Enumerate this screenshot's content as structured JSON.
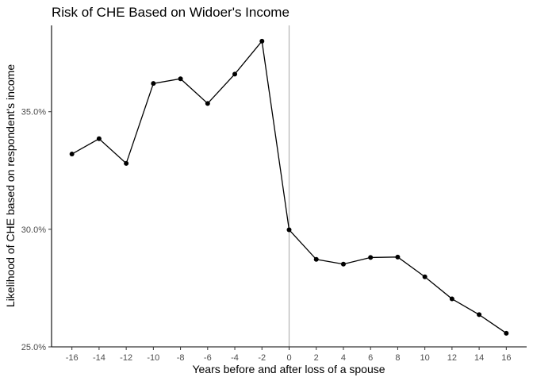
{
  "chart_data": {
    "type": "line",
    "title": "Risk of CHE Based on Widoer's Income",
    "xlabel": "Years before and after loss of a spouse",
    "ylabel": "Likelihood of CHE based on respondent's income",
    "x": [
      -16,
      -14,
      -12,
      -10,
      -8,
      -6,
      -4,
      -2,
      0,
      2,
      4,
      6,
      8,
      10,
      12,
      14,
      16
    ],
    "series": [
      {
        "values": [
          33.2,
          33.85,
          32.8,
          36.2,
          36.4,
          35.35,
          36.6,
          38.0,
          29.98,
          28.72,
          28.52,
          28.8,
          28.82,
          27.98,
          27.04,
          26.37,
          25.58
        ]
      }
    ],
    "xticks": [
      "-16",
      "-14",
      "-12",
      "-10",
      "-8",
      "-6",
      "-4",
      "-2",
      "0",
      "2",
      "4",
      "6",
      "8",
      "10",
      "12",
      "14",
      "16"
    ],
    "yticks": [
      {
        "value": 25,
        "label": "25.0%"
      },
      {
        "value": 30,
        "label": "30.0%"
      },
      {
        "value": 35,
        "label": "35.0%"
      }
    ],
    "xlim": [
      -17.5,
      17.5
    ],
    "ylim": [
      25,
      38.67
    ],
    "reference_line": {
      "x": 0
    },
    "grid": false,
    "colors": {
      "line": "#000000",
      "points": "#000000",
      "reference_line": "#b3b3b3",
      "axis": "#000000"
    }
  }
}
